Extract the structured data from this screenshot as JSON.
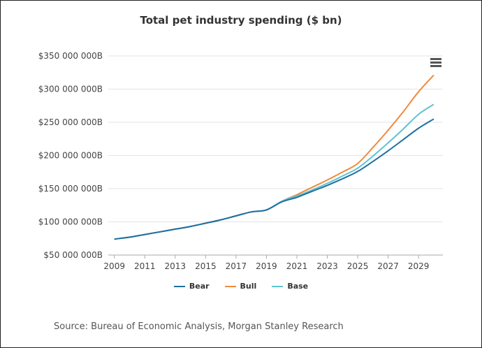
{
  "chart_data": {
    "type": "line",
    "title": "Total pet industry spending ($ bn)",
    "y_tick_labels": [
      "$50 000 000B",
      "$100 000 000B",
      "$150 000 000B",
      "$200 000 000B",
      "$250 000 000B",
      "$300 000 000B",
      "$350 000 000B"
    ],
    "y_ticks": [
      50,
      100,
      150,
      200,
      250,
      300,
      350
    ],
    "x_tick_labels": [
      "2009",
      "2011",
      "2013",
      "2015",
      "2017",
      "2019",
      "2021",
      "2023",
      "2025",
      "2027",
      "2029"
    ],
    "x_ticks": [
      2009,
      2011,
      2013,
      2015,
      2017,
      2019,
      2021,
      2023,
      2025,
      2027,
      2029
    ],
    "xlim": [
      2008.6,
      2030.6
    ],
    "ylim": [
      50,
      350
    ],
    "grid": true,
    "legend_position": "bottom",
    "series": [
      {
        "name": "Bear",
        "color": "#1f6fa0",
        "points": [
          [
            2009,
            74
          ],
          [
            2010,
            77
          ],
          [
            2011,
            81
          ],
          [
            2012,
            85
          ],
          [
            2013,
            89
          ],
          [
            2014,
            93
          ],
          [
            2015,
            98
          ],
          [
            2016,
            103
          ],
          [
            2017,
            109
          ],
          [
            2018,
            115
          ],
          [
            2019,
            118
          ],
          [
            2020,
            130
          ],
          [
            2021,
            137
          ],
          [
            2022,
            146
          ],
          [
            2023,
            155
          ],
          [
            2024,
            165
          ],
          [
            2025,
            176
          ],
          [
            2026,
            191
          ],
          [
            2027,
            207
          ],
          [
            2028,
            224
          ],
          [
            2029,
            241
          ],
          [
            2030,
            255
          ]
        ]
      },
      {
        "name": "Bull",
        "color": "#f08a3c",
        "points": [
          [
            2009,
            74
          ],
          [
            2010,
            77
          ],
          [
            2011,
            81
          ],
          [
            2012,
            85
          ],
          [
            2013,
            89
          ],
          [
            2014,
            93
          ],
          [
            2015,
            98
          ],
          [
            2016,
            103
          ],
          [
            2017,
            109
          ],
          [
            2018,
            115
          ],
          [
            2019,
            118
          ],
          [
            2020,
            131
          ],
          [
            2021,
            141
          ],
          [
            2022,
            152
          ],
          [
            2023,
            163
          ],
          [
            2024,
            175
          ],
          [
            2025,
            188
          ],
          [
            2026,
            212
          ],
          [
            2027,
            238
          ],
          [
            2028,
            266
          ],
          [
            2029,
            296
          ],
          [
            2030,
            321
          ]
        ]
      },
      {
        "name": "Base",
        "color": "#5fc3d1",
        "points": [
          [
            2009,
            74
          ],
          [
            2010,
            77
          ],
          [
            2011,
            81
          ],
          [
            2012,
            85
          ],
          [
            2013,
            89
          ],
          [
            2014,
            93
          ],
          [
            2015,
            98
          ],
          [
            2016,
            103
          ],
          [
            2017,
            109
          ],
          [
            2018,
            115
          ],
          [
            2019,
            118
          ],
          [
            2020,
            131
          ],
          [
            2021,
            139
          ],
          [
            2022,
            148
          ],
          [
            2023,
            158
          ],
          [
            2024,
            169
          ],
          [
            2025,
            181
          ],
          [
            2026,
            199
          ],
          [
            2027,
            219
          ],
          [
            2028,
            240
          ],
          [
            2029,
            262
          ],
          [
            2030,
            277
          ]
        ]
      }
    ]
  },
  "menu_icon": "hamburger-menu-icon",
  "source": "Source: Bureau of Economic Analysis, Morgan Stanley Research"
}
